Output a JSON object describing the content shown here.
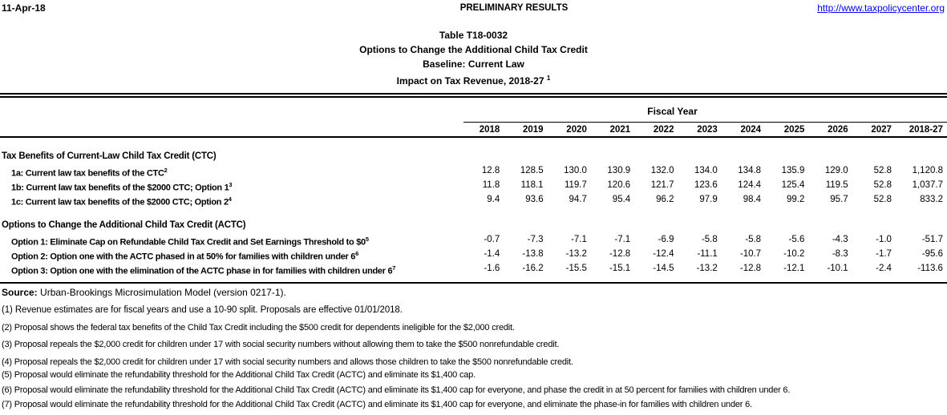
{
  "page": {
    "date": "11-Apr-18",
    "status": "PRELIMINARY RESULTS",
    "link": "http://www.taxpolicycenter.org"
  },
  "colors": {
    "background": "#FFFFFF",
    "text": "#000000",
    "link": "#0101EE",
    "rule": "#000000"
  },
  "title": {
    "line1": "Table T18-0032",
    "line2": "Options to Change the Additional Child Tax Credit",
    "line3": "Baseline: Current Law",
    "line4": "Impact on Tax Revenue, 2018-27",
    "line4_superscript": "1"
  },
  "table": {
    "header": {
      "group_label": "Fiscal Year",
      "columns": [
        "2018",
        "2019",
        "2020",
        "2021",
        "2022",
        "2023",
        "2024",
        "2025",
        "2026",
        "2027",
        "2018-27"
      ]
    },
    "sections": [
      {
        "heading": "Tax Benefits of Current-Law Child Tax Credit (CTC)",
        "rows": [
          {
            "label": "1a: Current law tax benefits of the CTC",
            "superscript": "2",
            "values": [
              "12.8",
              "128.5",
              "130.0",
              "130.9",
              "132.0",
              "134.0",
              "134.8",
              "135.9",
              "129.0",
              "52.8",
              "1,120.8"
            ]
          },
          {
            "label": "1b: Current law tax benefits of the $2000 CTC; Option 1",
            "superscript": "3",
            "values": [
              "11.8",
              "118.1",
              "119.7",
              "120.6",
              "121.7",
              "123.6",
              "124.4",
              "125.4",
              "119.5",
              "52.8",
              "1,037.7"
            ]
          },
          {
            "label": "1c: Current law tax benefits of the $2000 CTC; Option 2",
            "superscript": "4",
            "values": [
              "9.4",
              "93.6",
              "94.7",
              "95.4",
              "96.2",
              "97.9",
              "98.4",
              "99.2",
              "95.7",
              "52.8",
              "833.2"
            ]
          }
        ]
      },
      {
        "heading": "Options to Change the Additional Child Tax Credit (ACTC)",
        "rows": [
          {
            "label": "Option 1: Eliminate Cap on Refundable Child Tax Credit and Set Earnings Threshold to $0",
            "superscript": "5",
            "values": [
              "-0.7",
              "-7.3",
              "-7.1",
              "-7.1",
              "-6.9",
              "-5.8",
              "-5.8",
              "-5.6",
              "-4.3",
              "-1.0",
              "-51.7"
            ]
          },
          {
            "label": "Option 2: Option one with the ACTC phased in at 50% for families with children under 6",
            "superscript": "6",
            "values": [
              "-1.4",
              "-13.8",
              "-13.2",
              "-12.8",
              "-12.4",
              "-11.1",
              "-10.7",
              "-10.2",
              "-8.3",
              "-1.7",
              "-95.6"
            ]
          },
          {
            "label": "Option 3: Option one with the elimination of the ACTC phase in for families with children under 6",
            "superscript": "7",
            "values": [
              "-1.6",
              "-16.2",
              "-15.5",
              "-15.1",
              "-14.5",
              "-13.2",
              "-12.8",
              "-12.1",
              "-10.1",
              "-2.4",
              "-113.6"
            ]
          }
        ]
      }
    ]
  },
  "footnotes": {
    "source_label": "Source:",
    "source_text": "Urban-Brookings Microsimulation Model (version 0217-1).",
    "notes": [
      "(1) Revenue estimates are for fiscal years and use a 10-90 split. Proposals are effective 01/01/2018.",
      "(2) Proposal shows the federal tax benefits of the Child Tax Credit including the $500 credit for dependents ineligible for the $2,000 credit.",
      "(3) Proposal repeals the $2,000 credit for children under 17 with social security numbers without allowing them to take the $500 nonrefundable credit.",
      "(4) Proposal repeals the $2,000 credit for children under 17 with social security numbers and allows those children to take the $500 nonrefundable credit.",
      "(5) Proposal would eliminate the refundability threshold for the Additional Child Tax Credit (ACTC) and eliminate its $1,400 cap.",
      "(6) Proposal would eliminate the refundability threshold for the Additional Child Tax Credit (ACTC) and eliminate its $1,400 cap for everyone, and phase the credit in at 50 percent for families with children under 6.",
      "(7) Proposal would eliminate the refundability threshold for the Additional Child Tax Credit (ACTC) and eliminate its $1,400 cap for everyone, and eliminate the phase-in for families with children under 6."
    ]
  }
}
